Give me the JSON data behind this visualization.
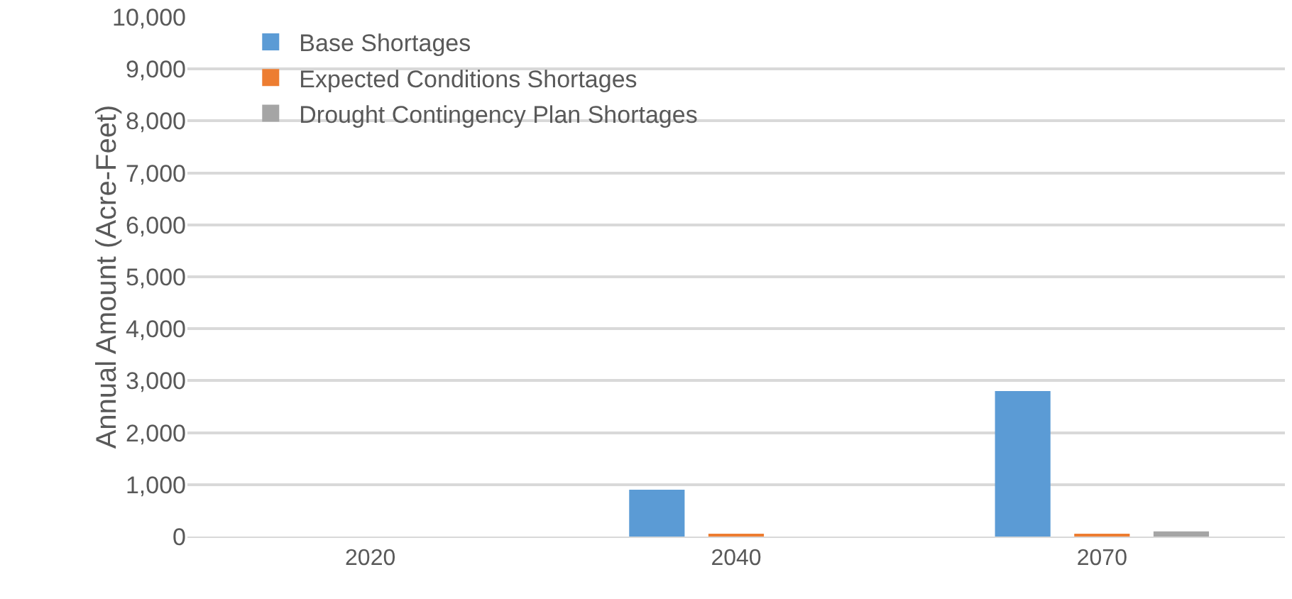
{
  "chart_data": {
    "type": "bar",
    "ylabel": "Annual Amount (Acre-Feet)",
    "categories": [
      "2020",
      "2040",
      "2070"
    ],
    "series": [
      {
        "name": "Base Shortages",
        "color": "#5b9bd5",
        "values": [
          0,
          900,
          2800
        ]
      },
      {
        "name": "Expected Conditions Shortages",
        "color": "#ed7d31",
        "values": [
          0,
          50,
          50
        ]
      },
      {
        "name": "Drought Contingency Plan Shortages",
        "color": "#a5a5a5",
        "values": [
          0,
          0,
          100
        ]
      }
    ],
    "ylim": [
      0,
      10000
    ],
    "yticks": [
      {
        "value": 0,
        "label": "0"
      },
      {
        "value": 1000,
        "label": "1,000"
      },
      {
        "value": 2000,
        "label": "2,000"
      },
      {
        "value": 3000,
        "label": "3,000"
      },
      {
        "value": 4000,
        "label": "4,000"
      },
      {
        "value": 5000,
        "label": "5,000"
      },
      {
        "value": 6000,
        "label": "6,000"
      },
      {
        "value": 7000,
        "label": "7,000"
      },
      {
        "value": 8000,
        "label": "8,000"
      },
      {
        "value": 9000,
        "label": "9,000"
      },
      {
        "value": 10000,
        "label": "10,000"
      }
    ],
    "grid": "y",
    "legend": "top left"
  }
}
